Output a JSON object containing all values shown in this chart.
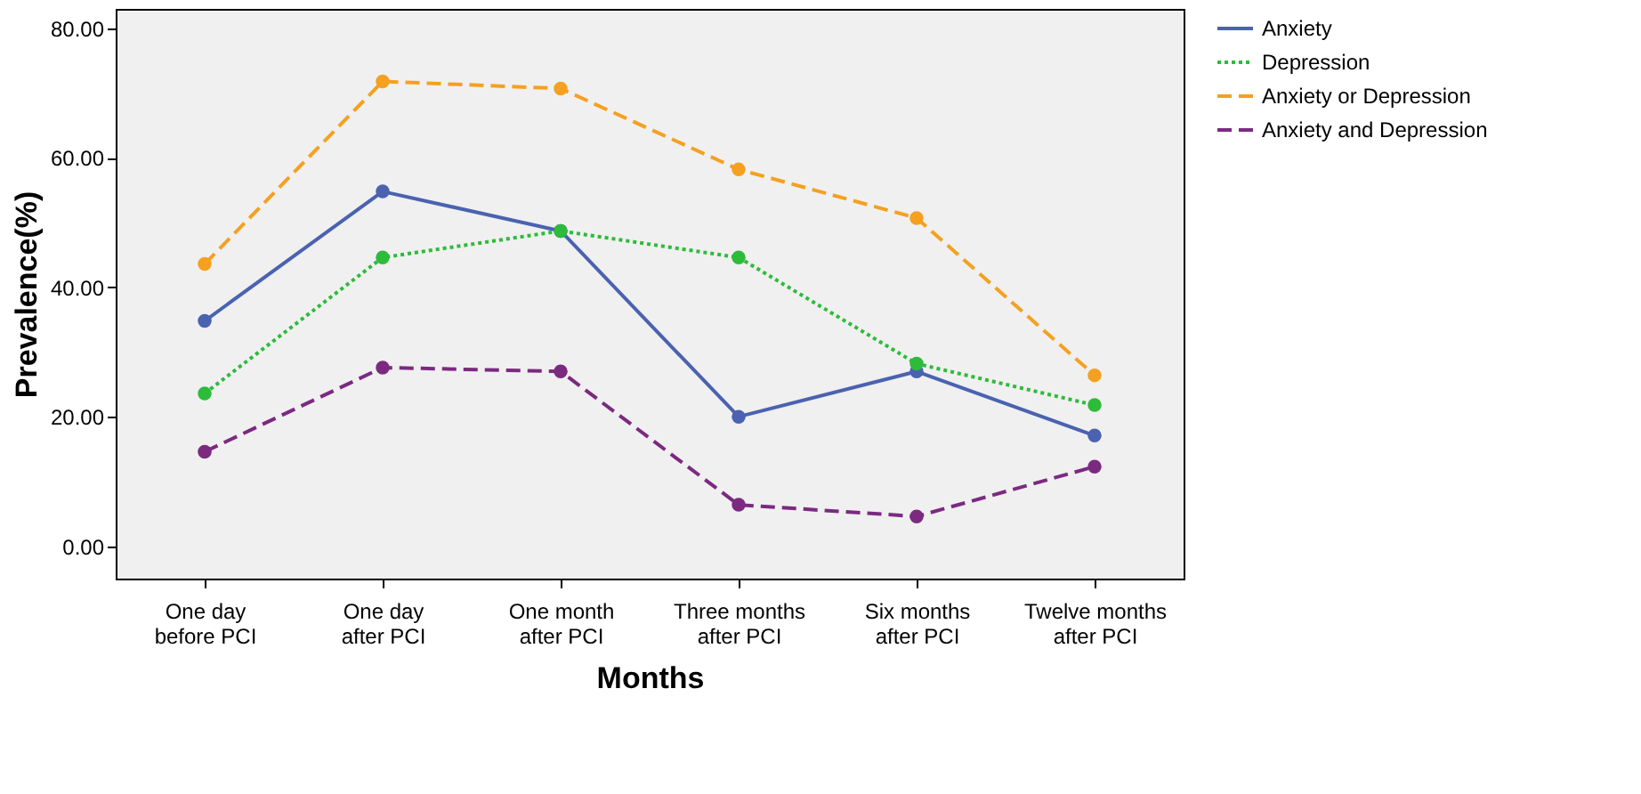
{
  "chart_data": {
    "type": "line",
    "xlabel": "Months",
    "ylabel": "Prevalence(%)",
    "categories": [
      "One day before PCI",
      "One day after PCI",
      "One month after PCI",
      "Three months after PCI",
      "Six months after PCI",
      "Twelve months after PCI"
    ],
    "series": [
      {
        "name": "Anxiety",
        "color": "#4a62b0",
        "line_style": "solid",
        "values": [
          34.8,
          54.8,
          48.7,
          20.0,
          27.0,
          17.1
        ]
      },
      {
        "name": "Depression",
        "color": "#2dbb3a",
        "line_style": "dotted",
        "values": [
          23.6,
          44.6,
          48.7,
          44.6,
          28.2,
          21.8
        ]
      },
      {
        "name": "Anxiety or Depression",
        "color": "#f5a020",
        "line_style": "dashed",
        "values": [
          43.6,
          71.8,
          70.7,
          58.2,
          50.7,
          26.4
        ]
      },
      {
        "name": "Anxiety and Depression",
        "color": "#7b2a80",
        "line_style": "dashed",
        "values": [
          14.6,
          27.6,
          27.0,
          6.4,
          4.6,
          12.3
        ]
      }
    ],
    "ylim": [
      -5,
      83
    ],
    "yticks": [
      {
        "value": 0,
        "label": "0.00"
      },
      {
        "value": 20,
        "label": "20.00"
      },
      {
        "value": 40,
        "label": "40.00"
      },
      {
        "value": 60,
        "label": "60.00"
      },
      {
        "value": 80,
        "label": "80.00"
      }
    ],
    "marker": "circle",
    "grid": false,
    "legend": "top right"
  }
}
